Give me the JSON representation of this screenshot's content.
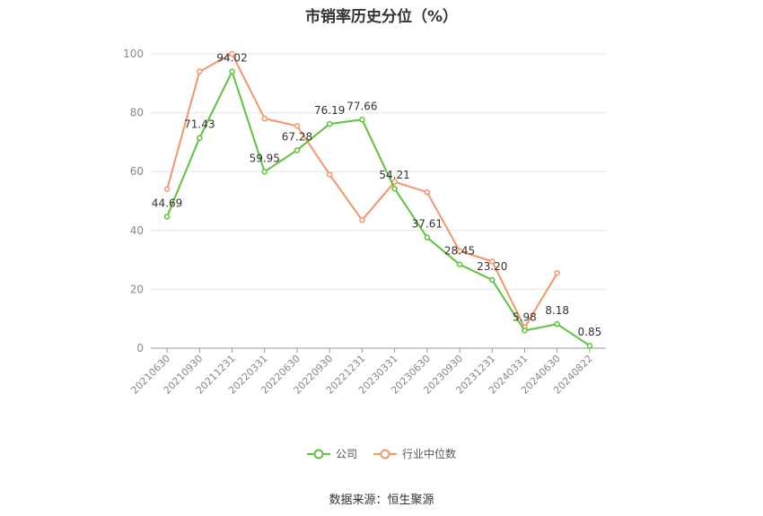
{
  "chart_data": {
    "type": "line",
    "title": "市销率历史分位（%）",
    "x": [
      "20210630",
      "20210930",
      "20211231",
      "20220331",
      "20220630",
      "20220930",
      "20221231",
      "20230331",
      "20230630",
      "20230930",
      "20231231",
      "20240331",
      "20240630",
      "20240822"
    ],
    "series": [
      {
        "name": "公司",
        "color": "#5dc43a",
        "values": [
          44.69,
          71.43,
          94.02,
          59.95,
          67.28,
          76.19,
          77.66,
          54.21,
          37.61,
          28.45,
          23.2,
          5.98,
          8.18,
          0.85
        ],
        "labels": [
          "44.69",
          "71.43",
          "94.02",
          "59.95",
          "67.28",
          "76.19",
          "77.66",
          "54.21",
          "37.61",
          "28.45",
          "23.20",
          "5.98",
          "8.18",
          "0.85"
        ]
      },
      {
        "name": "行业中位数",
        "color": "#f4956a",
        "values": [
          54,
          94,
          100,
          78,
          75.5,
          59,
          43.5,
          56.5,
          53,
          33,
          29.5,
          7,
          25.5,
          null
        ]
      }
    ],
    "ylim": [
      0,
      100
    ],
    "yticks": [
      0,
      20,
      40,
      60,
      80,
      100
    ],
    "grid": true,
    "legend_position": "bottom"
  },
  "source": "数据来源：恒生聚源"
}
